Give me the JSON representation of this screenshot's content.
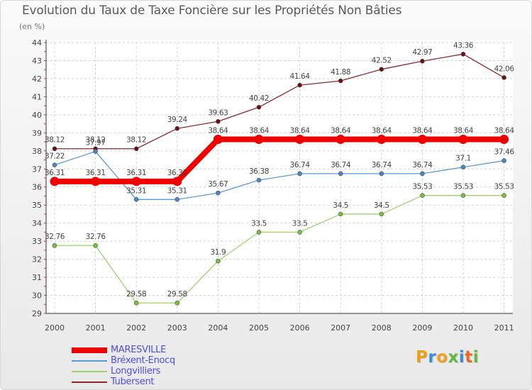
{
  "title": "Evolution du Taux de Taxe Foncière sur les Propriétés Non Bâties",
  "subtitle": "(en %)",
  "logo": {
    "letters": [
      "P",
      "r",
      "o",
      "x",
      "i",
      "t",
      "i"
    ],
    "colors": [
      "#e8a21a",
      "#3a8fd4",
      "#f0a020",
      "#62b83b",
      "#3a8fd4",
      "#e86a1a",
      "#62b83b"
    ]
  },
  "chart_data": {
    "type": "line",
    "title": "Evolution du Taux de Taxe Foncière sur les Propriétés Non Bâties",
    "ylabel": "(en %)",
    "xlabel": "",
    "ylim": [
      29,
      44
    ],
    "yticks": [
      "29",
      "30",
      "31",
      "32",
      "33",
      "34",
      "35",
      "36",
      "37",
      "38",
      "39",
      "40",
      "41",
      "42",
      "43",
      "44"
    ],
    "categories": [
      "2000",
      "2001",
      "2002",
      "2003",
      "2004",
      "2005",
      "2006",
      "2007",
      "2008",
      "2009",
      "2010",
      "2011"
    ],
    "grid": true,
    "legend_position": "bottom-left",
    "series": [
      {
        "name": "Tubersent",
        "color": "#8b2a2a",
        "marker_color": "#6b1010",
        "values": [
          38.12,
          38.12,
          38.12,
          39.24,
          39.63,
          40.42,
          41.64,
          41.88,
          42.52,
          42.97,
          43.36,
          42.06
        ],
        "labels": [
          "38.12",
          "38.12",
          "38.12",
          "39.24",
          "39.63",
          "40.42",
          "41.64",
          "41.88",
          "42.52",
          "42.97",
          "43.36",
          "42.06"
        ]
      },
      {
        "name": "Bréxent-Enocq",
        "color": "#5b9bd5",
        "marker_color": "#4a86c0",
        "values": [
          37.22,
          37.97,
          35.31,
          35.31,
          35.67,
          36.38,
          36.74,
          36.74,
          36.74,
          36.74,
          37.1,
          37.46
        ],
        "labels": [
          "37.22",
          "37.97",
          "35.31",
          "35.31",
          "35.67",
          "36.38",
          "36.74",
          "36.74",
          "36.74",
          "36.74",
          "37.1",
          "37.46"
        ]
      },
      {
        "name": "Longvilliers",
        "color": "#9fd36a",
        "marker_color": "#78bf3c",
        "values": [
          32.76,
          32.76,
          29.58,
          29.58,
          31.9,
          33.5,
          33.5,
          34.5,
          34.5,
          35.53,
          35.53,
          35.53
        ],
        "labels": [
          "32.76",
          "32.76",
          "29.58",
          "29.58",
          "31.9",
          "33.5",
          "33.5",
          "34.5",
          "34.5",
          "35.53",
          "35.53",
          "35.53"
        ]
      },
      {
        "name": "MARESVILLE",
        "color": "#ee0000",
        "marker_color": "#ee0000",
        "values": [
          36.31,
          36.31,
          36.31,
          36.31,
          38.64,
          38.64,
          38.64,
          38.64,
          38.64,
          38.64,
          38.64,
          38.64
        ],
        "labels": [
          "36.31",
          "36.31",
          "36.31",
          "36.31",
          "38.64",
          "38.64",
          "38.64",
          "38.64",
          "38.64",
          "38.64",
          "38.64",
          "38.64"
        ]
      }
    ],
    "legend_order": [
      "MARESVILLE",
      "Bréxent-Enocq",
      "Longvilliers",
      "Tubersent"
    ]
  }
}
